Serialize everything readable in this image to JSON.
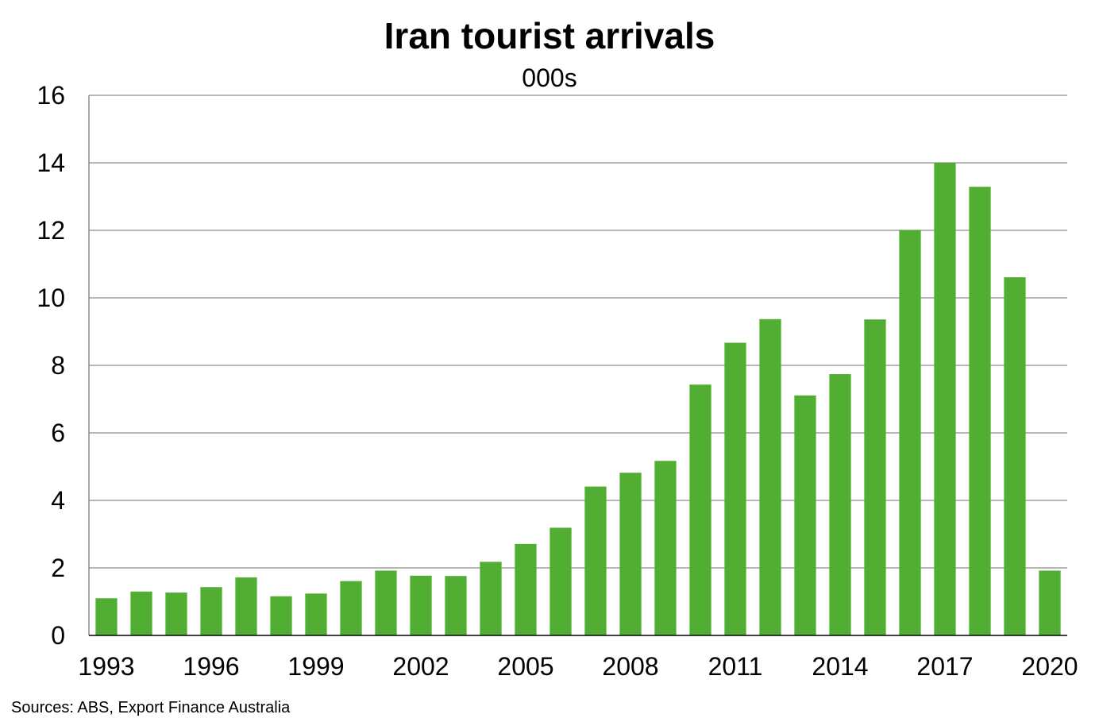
{
  "chart_data": {
    "type": "bar",
    "title": "Iran tourist arrivals",
    "subtitle": "000s",
    "xlabel": "",
    "ylabel": "",
    "ylim": [
      0,
      16
    ],
    "yticks": [
      0,
      2,
      4,
      6,
      8,
      10,
      12,
      14,
      16
    ],
    "xtick_labels": [
      "1993",
      "1996",
      "1999",
      "2002",
      "2005",
      "2008",
      "2011",
      "2014",
      "2017",
      "2020"
    ],
    "categories": [
      "1993",
      "1994",
      "1995",
      "1996",
      "1997",
      "1998",
      "1999",
      "2000",
      "2001",
      "2002",
      "2003",
      "2004",
      "2005",
      "2006",
      "2007",
      "2008",
      "2009",
      "2010",
      "2011",
      "2012",
      "2013",
      "2014",
      "2015",
      "2016",
      "2017",
      "2018",
      "2019",
      "2020"
    ],
    "values": [
      1.1,
      1.3,
      1.27,
      1.43,
      1.72,
      1.16,
      1.24,
      1.61,
      1.92,
      1.77,
      1.76,
      2.18,
      2.71,
      3.19,
      4.41,
      4.82,
      5.17,
      7.43,
      8.67,
      9.37,
      7.11,
      7.74,
      9.36,
      12.01,
      14.0,
      13.29,
      10.61,
      1.92
    ],
    "bar_color": "#52ae32",
    "grid": true,
    "source": "Sources: ABS, Export Finance Australia"
  }
}
